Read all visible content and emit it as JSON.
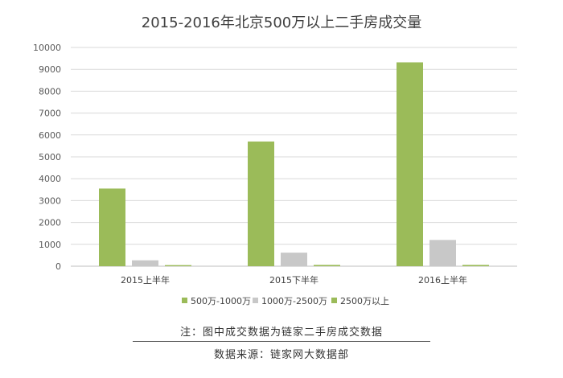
{
  "chart_data": {
    "type": "bar",
    "title": "2015-2016年北京500万以上二手房成交量",
    "categories": [
      "2015上半年",
      "2015下半年",
      "2016上半年"
    ],
    "series": [
      {
        "name": "500万-1000万",
        "color": "#9bbb59",
        "values": [
          3550,
          5700,
          9320
        ]
      },
      {
        "name": "1000万-2500万",
        "color": "#c8c8c8",
        "values": [
          270,
          620,
          1200
        ]
      },
      {
        "name": "2500万以上",
        "color": "#9bbb59",
        "values": [
          50,
          60,
          60
        ]
      }
    ],
    "ylim": [
      0,
      10000
    ],
    "yticks": [
      0,
      1000,
      2000,
      3000,
      4000,
      5000,
      6000,
      7000,
      8000,
      9000,
      10000
    ],
    "grid": true,
    "legend_position": "bottom"
  },
  "footer": {
    "note": "注：图中成交数据为链家二手房成交数据",
    "source": "数据来源：链家网大数据部"
  }
}
